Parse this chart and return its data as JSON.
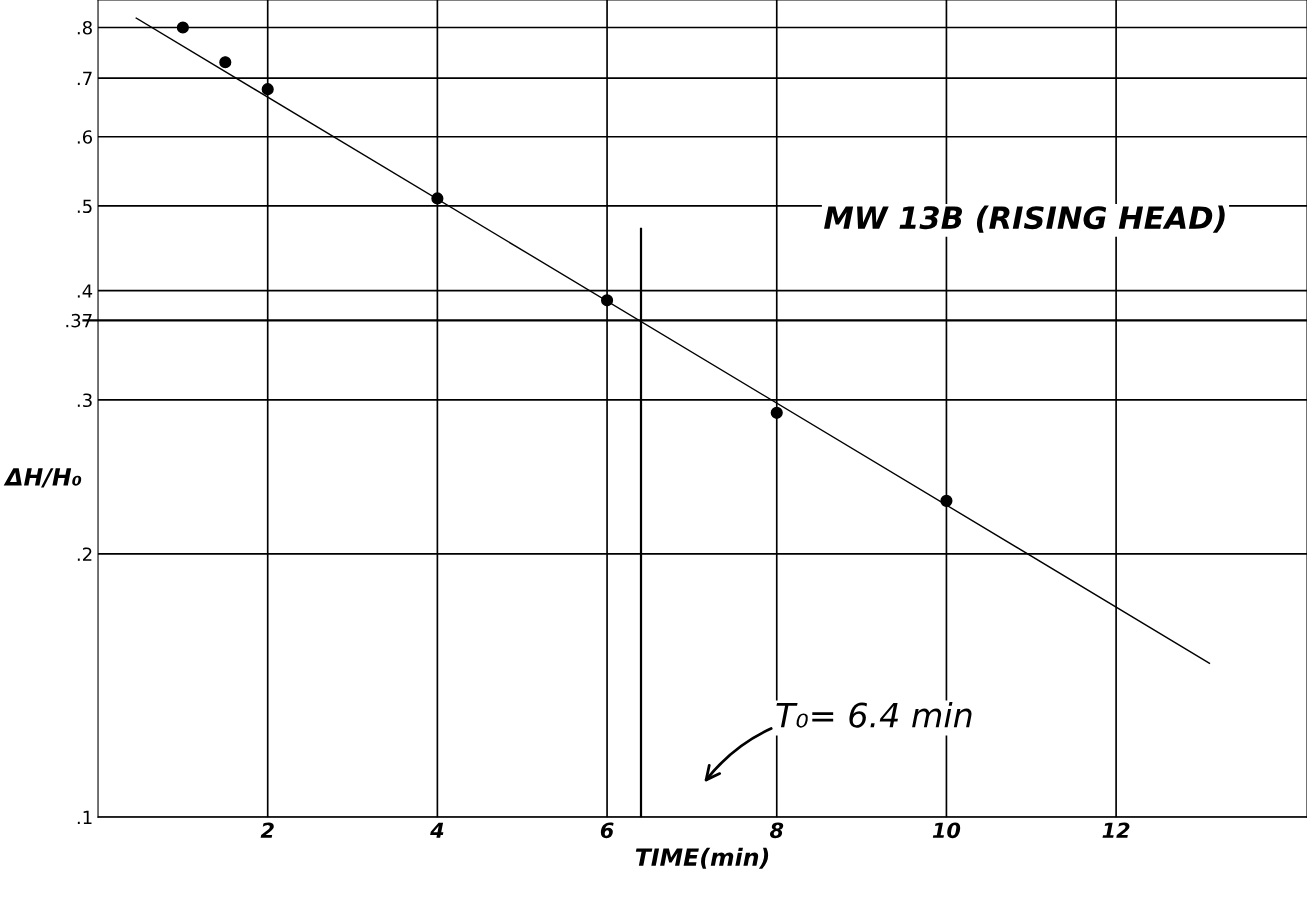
{
  "chart_data": {
    "type": "scatter",
    "xlabel": "TIME(min)",
    "ylabel": "ΔH/H₀",
    "log": "y",
    "xlim": [
      0,
      14.25
    ],
    "ylim": [
      0.1,
      0.86
    ],
    "xticks": [
      2,
      4,
      6,
      8,
      10,
      12
    ],
    "yticks": [
      {
        "value": 0.1,
        "label": ".1"
      },
      {
        "value": 0.2,
        "label": ".2"
      },
      {
        "value": 0.3,
        "label": ".3"
      },
      {
        "value": 0.37,
        "label": ".37"
      },
      {
        "value": 0.4,
        "label": ".4"
      },
      {
        "value": 0.5,
        "label": ".5"
      },
      {
        "value": 0.6,
        "label": ".6"
      },
      {
        "value": 0.7,
        "label": ".7"
      },
      {
        "value": 0.8,
        "label": ".8"
      }
    ],
    "grid": true,
    "marker": "circle",
    "series": [
      {
        "color": "#000000",
        "x": [
          1,
          1.5,
          2,
          4,
          6,
          8,
          10
        ],
        "values": [
          0.8,
          0.73,
          0.68,
          0.51,
          0.39,
          0.29,
          0.23
        ]
      },
      {
        "type": "line",
        "color": "#000000",
        "marker": "none",
        "line_style": "solid",
        "x": [
          0.45,
          13.1
        ],
        "values": [
          0.82,
          0.15
        ]
      }
    ],
    "ref_lines": [
      {
        "axis": "y",
        "value": 0.37,
        "color": "#000000"
      },
      {
        "axis": "x",
        "value": 6.4,
        "color": "#000000"
      }
    ],
    "annotations": [
      "MW 13B (RISING HEAD)",
      "T₀= 6.4 min"
    ]
  }
}
